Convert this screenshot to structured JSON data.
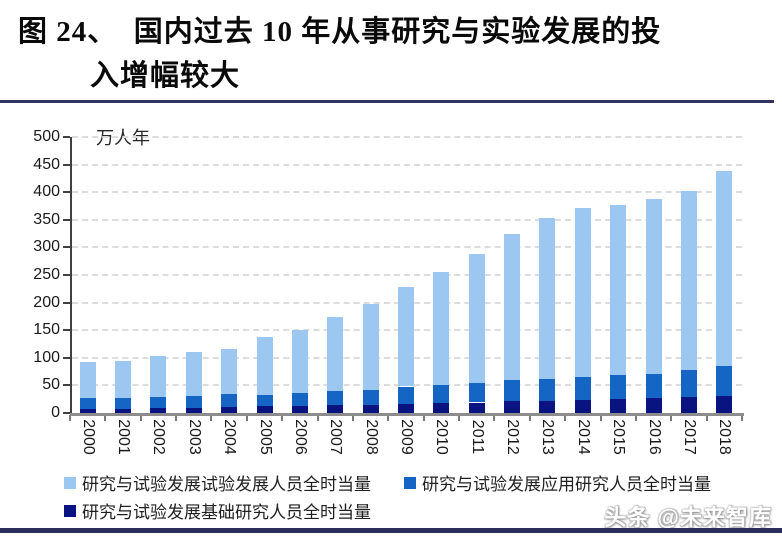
{
  "page": {
    "title_line1": "图 24、  国内过去 10 年从事研究与实验发展的投",
    "title_line2": "入增幅较大",
    "watermark": "头条 @未来智库"
  },
  "chart_data": {
    "type": "bar",
    "stacked": true,
    "title": "国内过去10年从事研究与实验发展的投入增幅较大",
    "unit_label": "万人年",
    "ylabel": "万人年",
    "xlabel": "",
    "ylim": [
      0,
      500
    ],
    "ytick_step": 50,
    "grid": "horizontal-dashed",
    "legend_position": "bottom",
    "categories": [
      "2000",
      "2001",
      "2002",
      "2003",
      "2004",
      "2005",
      "2006",
      "2007",
      "2008",
      "2009",
      "2010",
      "2011",
      "2012",
      "2013",
      "2014",
      "2015",
      "2016",
      "2017",
      "2018"
    ],
    "series": [
      {
        "name": "研究与试验发展试验发展人员全时当量",
        "color": "#9bc7f0",
        "stack_position": "top",
        "values": [
          65,
          68,
          75,
          79,
          82,
          104,
          113,
          134,
          155,
          181,
          205,
          233,
          265,
          291,
          306,
          308,
          317,
          326,
          353
        ]
      },
      {
        "name": "研究与试验发展应用研究人员全时当量",
        "color": "#1566c4",
        "stack_position": "middle",
        "values": [
          19,
          19,
          20,
          22,
          24,
          21,
          24,
          26,
          27,
          32,
          33,
          36,
          39,
          40,
          41,
          43,
          43,
          48,
          54
        ]
      },
      {
        "name": "研究与试验发展基础研究人员全时当量",
        "color": "#0a1480",
        "stack_position": "bottom",
        "values": [
          8,
          8,
          9,
          9,
          10,
          12,
          13,
          14,
          15,
          16,
          18,
          19,
          21,
          22,
          24,
          25,
          28,
          29,
          31
        ]
      }
    ],
    "totals": [
      92,
      95,
      104,
      110,
      116,
      137,
      150,
      174,
      197,
      229,
      256,
      288,
      325,
      353,
      371,
      376,
      388,
      403,
      438
    ]
  }
}
